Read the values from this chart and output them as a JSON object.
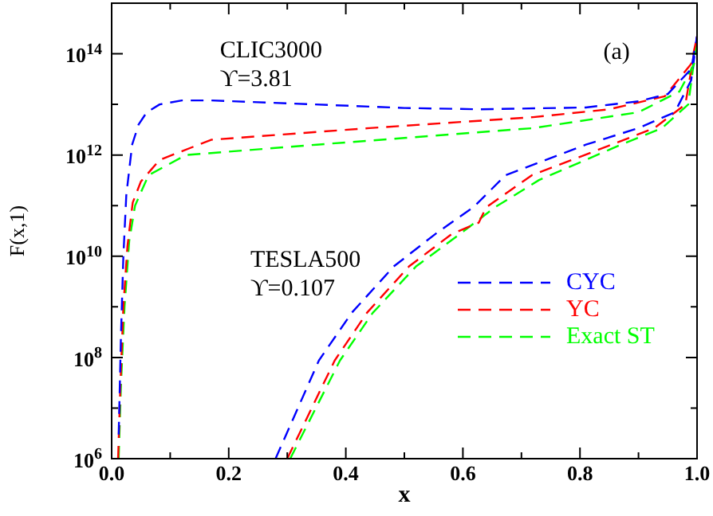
{
  "chart_data": {
    "type": "line",
    "xlabel": "x",
    "ylabel": "F(x,1)",
    "log": "y",
    "grid": false,
    "legend": "bottom right",
    "marker": "none",
    "line_style": "dashed",
    "xlim": [
      0,
      1
    ],
    "ylim": [
      1000000.0,
      1000000000000000.0
    ],
    "xticks": [
      {
        "value": 0,
        "label": "0.0"
      },
      {
        "value": 0.1,
        "label": null
      },
      0.2,
      {
        "value": 0.3,
        "label": null
      },
      0.4,
      {
        "value": 0.5,
        "label": null
      },
      0.6,
      {
        "value": 0.7,
        "label": null
      },
      0.8,
      {
        "value": 0.9,
        "label": null
      },
      {
        "value": 1,
        "label": "1.0"
      }
    ],
    "yticks": [
      {
        "value": 1000000.0,
        "label": "10$^{6}$"
      },
      {
        "value": 10000000.0,
        "label": null
      },
      {
        "value": 100000000.0,
        "label": "10$^{8}$"
      },
      {
        "value": 1000000000.0,
        "label": null
      },
      {
        "value": 10000000000.0,
        "label": "10$^{10}$"
      },
      {
        "value": 100000000000.0,
        "label": null
      },
      {
        "value": 1000000000000.0,
        "label": "10$^{12}$"
      },
      {
        "value": 10000000000000.0,
        "label": null
      },
      {
        "value": 100000000000000.0,
        "label": "10$^{14}$"
      }
    ],
    "annotations": [
      "CLIC3000",
      "ϒ=3.81",
      "TESLA500",
      "ϒ=0.107",
      "(a)"
    ],
    "series": [
      {
        "name": "CYC",
        "color": "#0000ff",
        "x": [
          0.012,
          0.016,
          0.02,
          0.025,
          0.035,
          0.046,
          0.06,
          0.082,
          0.12,
          0.17,
          0.3,
          0.5,
          0.63,
          0.81,
          0.9,
          0.95,
          0.99,
          1.0
        ],
        "values": [
          3000000.0,
          300000000.0,
          10000000000.0,
          160000000000.0,
          1600000000000.0,
          4000000000000.0,
          7000000000000.0,
          10000000000000.0,
          12000000000000.0,
          12000000000000.0,
          10500000000000.0,
          8500000000000.0,
          8000000000000.0,
          8700000000000.0,
          11500000000000.0,
          16000000000000.0,
          50000000000000.0,
          220000000000000.0
        ]
      },
      {
        "name": "YC",
        "color": "#ff0000",
        "x": [
          0.011,
          0.015,
          0.02,
          0.027,
          0.036,
          0.05,
          0.082,
          0.17,
          0.44,
          0.72,
          0.85,
          0.945,
          0.99,
          1.0
        ],
        "values": [
          1000000.0,
          30000000.0,
          1000000000.0,
          16000000000.0,
          115000000000.0,
          300000000000.0,
          800000000000.0,
          2000000000000.0,
          3400000000000.0,
          5600000000000.0,
          8000000000000.0,
          14500000000000.0,
          63000000000000.0,
          220000000000000.0
        ]
      },
      {
        "name": "Exact ST",
        "color": "#00ff00",
        "x": [
          0.012,
          0.016,
          0.022,
          0.03,
          0.04,
          0.063,
          0.127,
          0.35,
          0.72,
          0.9,
          0.97,
          0.995,
          1.0
        ],
        "values": [
          1000000.0,
          30000000.0,
          1000000000.0,
          20000000000.0,
          100000000000.0,
          400000000000.0,
          1000000000000.0,
          1600000000000.0,
          3400000000000.0,
          7000000000000.0,
          18000000000000.0,
          63000000000000.0,
          200000000000000.0
        ]
      },
      {
        "color": "#0000ff",
        "x": [
          0.28,
          0.354,
          0.41,
          0.482,
          0.553,
          0.58,
          0.618,
          0.673,
          0.81,
          0.9,
          0.962,
          0.99,
          1.0
        ],
        "values": [
          1000000.0,
          87000000.0,
          760000000.0,
          6300000000.0,
          27500000000.0,
          46000000000.0,
          93000000000.0,
          400000000000.0,
          1600000000000.0,
          3400000000000.0,
          7000000000000.0,
          30000000000000.0,
          220000000000000.0
        ]
      },
      {
        "color": "#ff0000",
        "x": [
          0.3,
          0.381,
          0.436,
          0.508,
          0.581,
          0.627,
          0.64,
          0.718,
          0.854,
          0.927,
          0.98,
          1.0
        ],
        "values": [
          1000000.0,
          87000000.0,
          760000000.0,
          6300000000.0,
          27500000000.0,
          46000000000.0,
          93000000000.0,
          400000000000.0,
          1600000000000.0,
          3400000000000.0,
          10000000000000.0,
          220000000000000.0
        ]
      },
      {
        "color": "#00ff00",
        "x": [
          0.305,
          0.39,
          0.446,
          0.52,
          0.595,
          0.655,
          0.73,
          0.87,
          0.94,
          0.985,
          1.0
        ],
        "values": [
          1000000.0,
          87000000.0,
          760000000.0,
          6300000000.0,
          27500000000.0,
          93000000000.0,
          320000000000.0,
          1600000000000.0,
          3400000000000.0,
          10000000000000.0,
          200000000000000.0
        ]
      }
    ]
  }
}
